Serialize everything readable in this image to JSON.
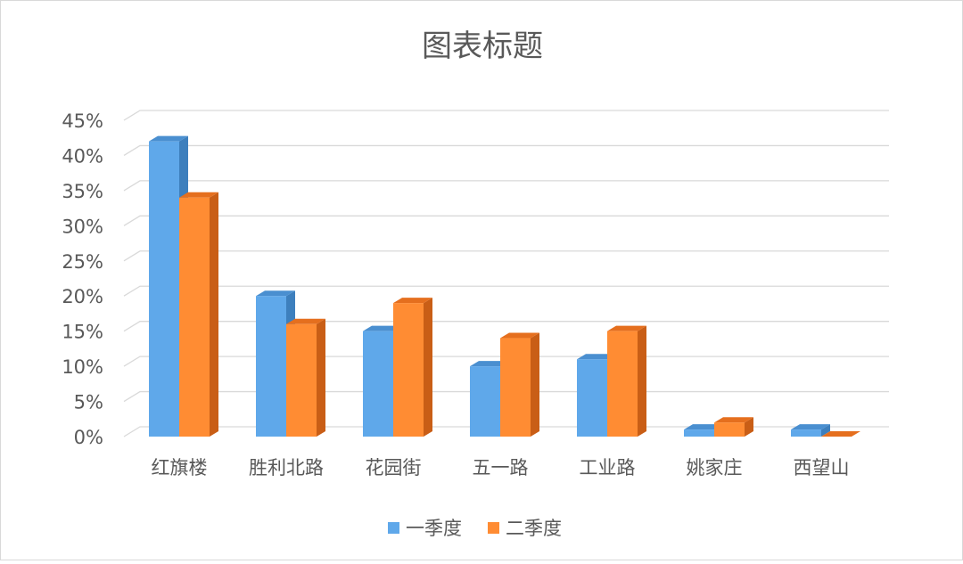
{
  "chart_data": {
    "type": "bar",
    "title": "图表标题",
    "categories": [
      "红旗楼",
      "胜利北路",
      "花园街",
      "五一路",
      "工业路",
      "姚家庄",
      "西望山"
    ],
    "series": [
      {
        "name": "一季度",
        "values": [
          0.42,
          0.2,
          0.15,
          0.1,
          0.11,
          0.01,
          0.01
        ]
      },
      {
        "name": "二季度",
        "values": [
          0.34,
          0.16,
          0.19,
          0.14,
          0.15,
          0.02,
          0.0
        ]
      }
    ],
    "ylim": [
      0,
      0.45
    ],
    "yticks": [
      "0%",
      "5%",
      "10%",
      "15%",
      "20%",
      "25%",
      "30%",
      "35%",
      "40%",
      "45%"
    ],
    "grid": true,
    "legend_position": "bottom",
    "style": "3d-clustered-column",
    "colors": {
      "series": [
        "#5fa8ea",
        "#ff8c33"
      ],
      "series_side": [
        "#3d7fbd",
        "#c95e16"
      ],
      "series_top": [
        "#4a8fd0",
        "#e56f1e"
      ]
    }
  }
}
